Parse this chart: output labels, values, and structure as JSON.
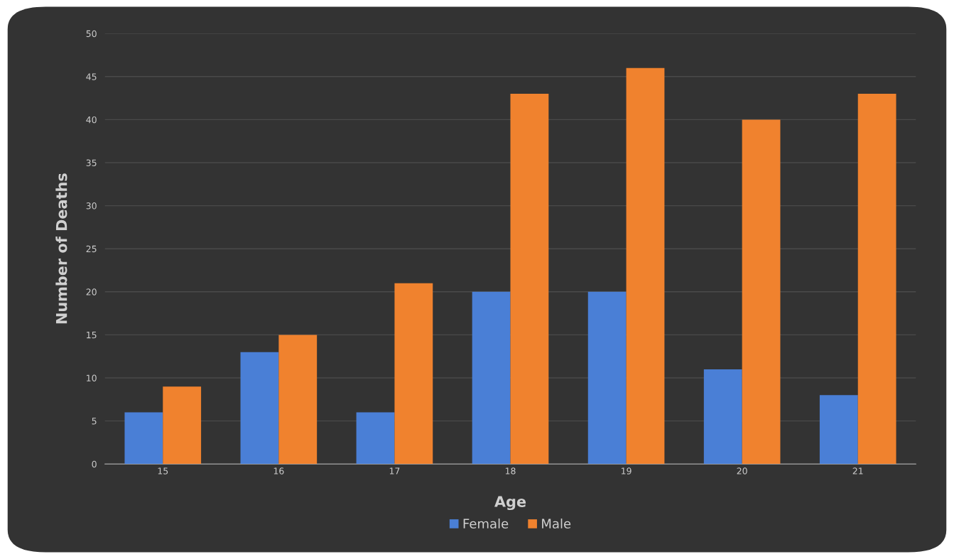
{
  "chart_data": {
    "type": "bar",
    "xlabel": "Age",
    "ylabel": "Number of Deaths",
    "categories": [
      "15",
      "16",
      "17",
      "18",
      "19",
      "20",
      "21"
    ],
    "series": [
      {
        "name": "Female",
        "color": "#4a7fd6",
        "values": [
          6,
          13,
          6,
          20,
          20,
          11,
          8
        ]
      },
      {
        "name": "Male",
        "color": "#f0822e",
        "values": [
          9,
          15,
          21,
          43,
          46,
          40,
          43
        ]
      }
    ],
    "ylim": [
      0,
      50
    ],
    "yticks": [
      0,
      5,
      10,
      15,
      20,
      25,
      30,
      35,
      40,
      45,
      50
    ],
    "grid": "y",
    "legend": "bottom"
  }
}
